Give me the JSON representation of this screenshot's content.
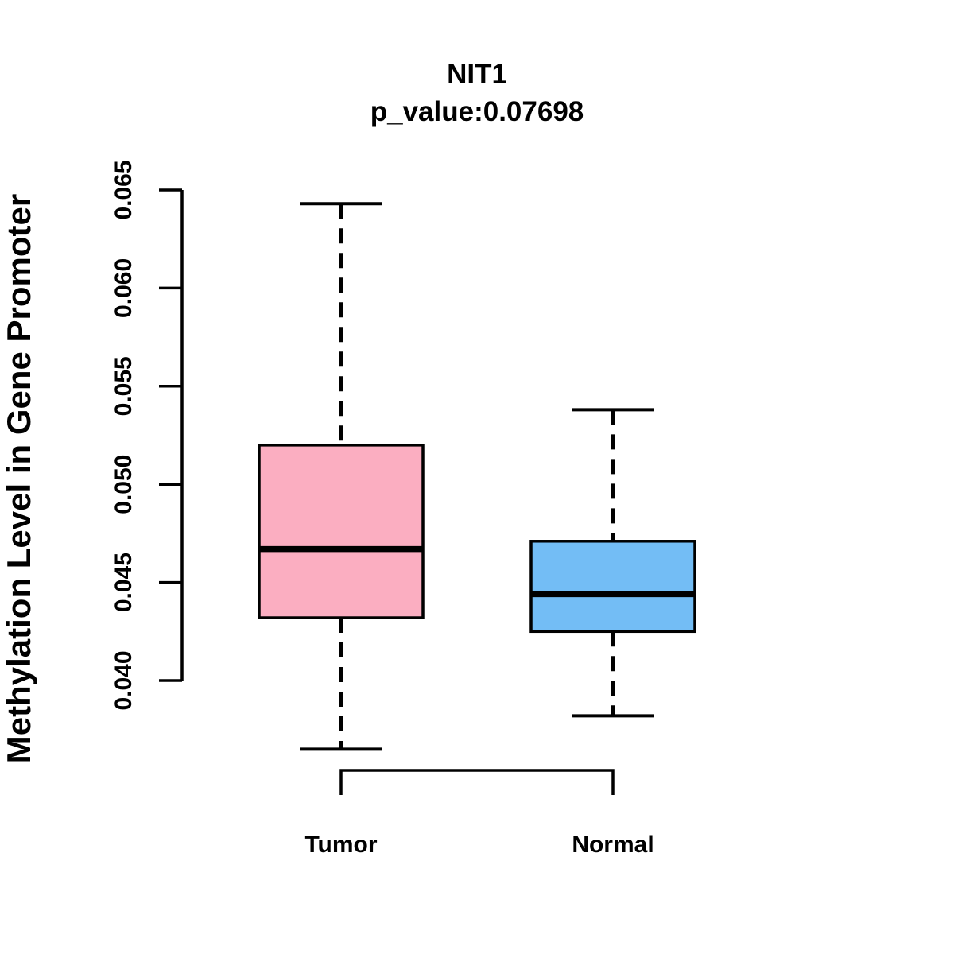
{
  "chart_data": {
    "type": "boxplot",
    "title": "NIT1",
    "subtitle": "p_value:0.07698",
    "ylabel": "Methylation Level in Gene Promoter",
    "xlabel": "",
    "ylim": [
      0.04,
      0.065
    ],
    "yticks": [
      0.04,
      0.045,
      0.05,
      0.055,
      0.06,
      0.065
    ],
    "ytick_labels": [
      "0.040",
      "0.045",
      "0.050",
      "0.055",
      "0.060",
      "0.065"
    ],
    "categories": [
      "Tumor",
      "Normal"
    ],
    "series": [
      {
        "name": "Tumor",
        "color": "#FBAEC1",
        "whisker_low": 0.0365,
        "q1": 0.0432,
        "median": 0.0467,
        "q3": 0.052,
        "whisker_high": 0.0643
      },
      {
        "name": "Normal",
        "color": "#73BDF5",
        "whisker_low": 0.0382,
        "q1": 0.0425,
        "median": 0.0444,
        "q3": 0.0471,
        "whisker_high": 0.0538
      }
    ],
    "colors": {
      "box_border": "#000000",
      "median_line": "#000000",
      "axis": "#000000",
      "text": "#000000",
      "background": "#ffffff"
    },
    "legend": "none",
    "grid": false
  }
}
